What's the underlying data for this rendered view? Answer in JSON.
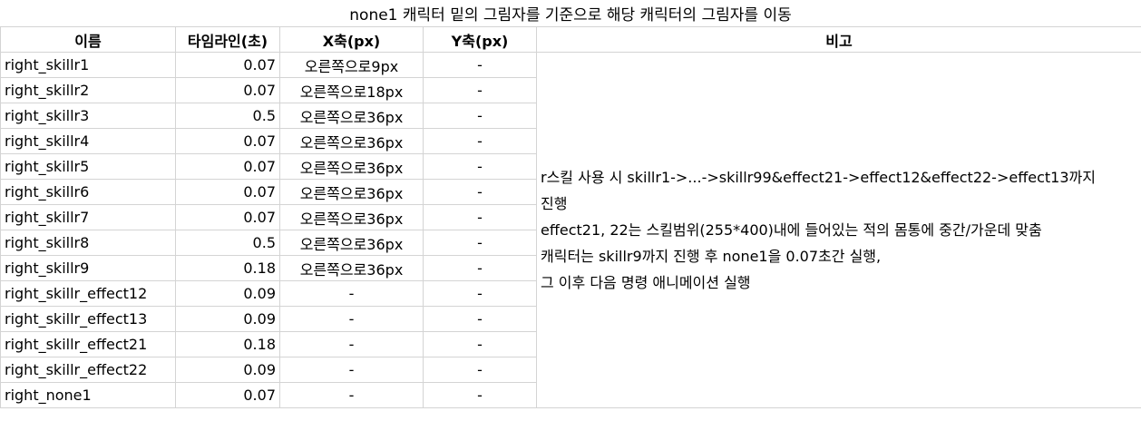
{
  "title": "none1 캐릭터 밑의 그림자를 기준으로  해당 캐릭터의 그림자를 이동",
  "headers": [
    "이름",
    "타임라인(초)",
    "X축(px)",
    "Y축(px)",
    "비고"
  ],
  "rows": [
    {
      "name": "right_skillr1",
      "time": "0.07",
      "x": "오른쪽으로9px",
      "y": "-"
    },
    {
      "name": "right_skillr2",
      "time": "0.07",
      "x": "오른쪽으로18px",
      "y": "-"
    },
    {
      "name": "right_skillr3",
      "time": "0.5",
      "x": "오른쪽으로36px",
      "y": "-"
    },
    {
      "name": "right_skillr4",
      "time": "0.07",
      "x": "오른쪽으로36px",
      "y": "-"
    },
    {
      "name": "right_skillr5",
      "time": "0.07",
      "x": "오른쪽으로36px",
      "y": "-"
    },
    {
      "name": "right_skillr6",
      "time": "0.07",
      "x": "오른쪽으로36px",
      "y": "-"
    },
    {
      "name": "right_skillr7",
      "time": "0.07",
      "x": "오른쪽으로36px",
      "y": "-"
    },
    {
      "name": "right_skillr8",
      "time": "0.5",
      "x": "오른쪽으로36px",
      "y": "-"
    },
    {
      "name": "right_skillr9",
      "time": "0.18",
      "x": "오른쪽으로36px",
      "y": "-"
    },
    {
      "name": "right_skillr_effect12",
      "time": "0.09",
      "x": "-",
      "y": "-"
    },
    {
      "name": "right_skillr_effect13",
      "time": "0.09",
      "x": "-",
      "y": "-"
    },
    {
      "name": "right_skillr_effect21",
      "time": "0.18",
      "x": "-",
      "y": "-"
    },
    {
      "name": "right_skillr_effect22",
      "time": "0.09",
      "x": "-",
      "y": "-"
    },
    {
      "name": "right_none1",
      "time": "0.07",
      "x": "-",
      "y": "-"
    }
  ],
  "note_lines": [
    "r스킬 사용 시 skillr1->...->skillr99&effect21->effect12&effect22->effect13까지",
    "진행",
    "effect21, 22는 스킬범위(255*400)내에 들어있는 적의 몸통에 중간/가운데 맞춤",
    "캐릭터는 skillr9까지 진행 후 none1을 0.07초간 실행,",
    "그 이후 다음 명령 애니메이션 실행"
  ]
}
